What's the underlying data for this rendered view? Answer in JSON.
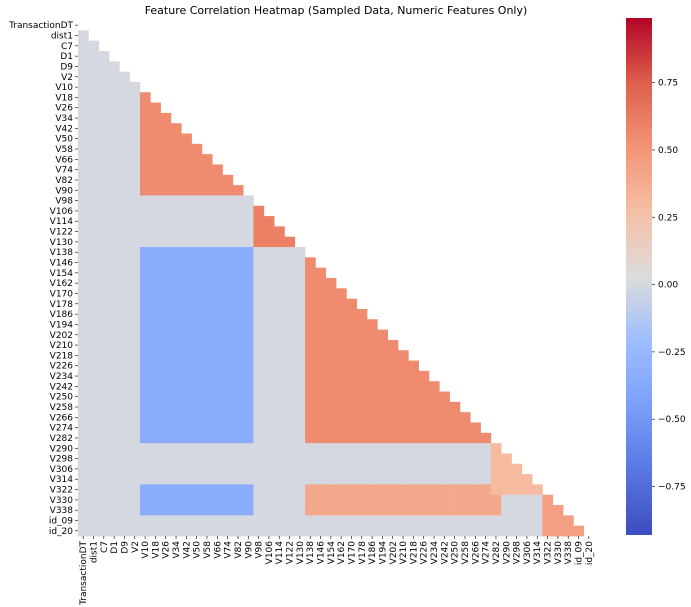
{
  "chart_data": {
    "type": "heatmap",
    "title": "Feature Correlation Heatmap (Sampled Data, Numeric Features Only)",
    "mask": "upper-triangle",
    "row_tick_labels": [
      "TransactionDT",
      "dist1",
      "C7",
      "D1",
      "D9",
      "V2",
      "V10",
      "V18",
      "V26",
      "V34",
      "V42",
      "V50",
      "V58",
      "V66",
      "V74",
      "V82",
      "V90",
      "V98",
      "V106",
      "V114",
      "V122",
      "V130",
      "V138",
      "V146",
      "V154",
      "V162",
      "V170",
      "V178",
      "V186",
      "V194",
      "V202",
      "V210",
      "V218",
      "V226",
      "V234",
      "V242",
      "V250",
      "V258",
      "V266",
      "V274",
      "V282",
      "V290",
      "V298",
      "V306",
      "V314",
      "V322",
      "V330",
      "V338",
      "id_09",
      "id_20"
    ],
    "col_tick_labels": [
      "TransactionDT",
      "dist1",
      "C7",
      "D1",
      "D9",
      "V2",
      "V10",
      "V18",
      "V26",
      "V34",
      "V42",
      "V50",
      "V58",
      "V66",
      "V74",
      "V82",
      "V90",
      "V98",
      "V106",
      "V114",
      "V122",
      "V130",
      "V138",
      "V146",
      "V154",
      "V162",
      "V170",
      "V178",
      "V186",
      "V194",
      "V202",
      "V210",
      "V218",
      "V226",
      "V234",
      "V242",
      "V250",
      "V258",
      "V266",
      "V274",
      "V282",
      "V290",
      "V298",
      "V306",
      "V314",
      "V322",
      "V330",
      "V338",
      "id_09",
      "id_20"
    ],
    "colorbar": {
      "min": -0.93,
      "max": 0.99,
      "ticks": [
        -0.75,
        -0.5,
        -0.25,
        0.0,
        0.25,
        0.5,
        0.75
      ],
      "tick_labels": [
        "−0.75",
        "−0.50",
        "−0.25",
        "0.00",
        "0.25",
        "0.50",
        "0.75"
      ],
      "colormap": "coolwarm"
    },
    "blocks": [
      {
        "rows": [
          "V10",
          "V90"
        ],
        "cols": [
          "V10",
          "V90"
        ],
        "value": 0.55
      },
      {
        "rows": [
          "V138",
          "V282"
        ],
        "cols": [
          "V138",
          "V282"
        ],
        "value": 0.55
      },
      {
        "rows": [
          "V138",
          "V282"
        ],
        "cols": [
          "V10",
          "V90"
        ],
        "value": -0.35
      },
      {
        "rows": [
          "V322",
          "V338"
        ],
        "cols": [
          "V10",
          "V90"
        ],
        "value": -0.35
      },
      {
        "rows": [
          "V322",
          "V338"
        ],
        "cols": [
          "V138",
          "V282"
        ],
        "value": 0.4
      },
      {
        "rows": [
          "V98",
          "V130"
        ],
        "cols": [
          "TransactionDT",
          "V90"
        ],
        "value": 0.0
      },
      {
        "rows": [
          "V98",
          "V130"
        ],
        "cols": [
          "V98",
          "V130"
        ],
        "value": 0.6
      },
      {
        "rows": [
          "V282",
          "V322"
        ],
        "cols": [
          "V282",
          "V322"
        ],
        "value": 0.3
      },
      {
        "rows": [
          "V322",
          "id_20"
        ],
        "cols": [
          "V322",
          "id_20"
        ],
        "value": 0.45
      }
    ]
  }
}
